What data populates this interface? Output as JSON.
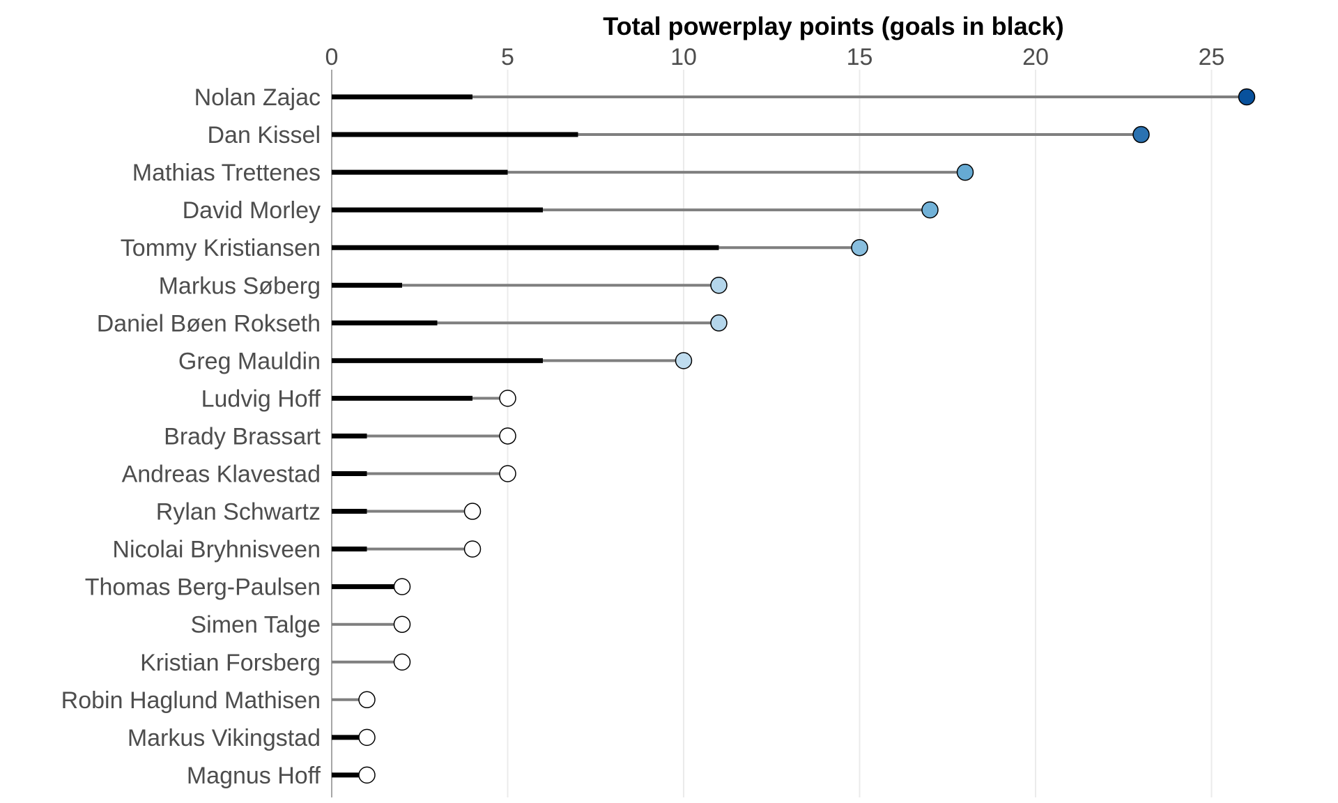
{
  "chart_data": {
    "type": "lollipop",
    "title": "Total powerplay points (goals in black)",
    "x_axis": {
      "position": "top",
      "ticks": [
        0,
        5,
        10,
        15,
        20,
        25
      ],
      "range": [
        0,
        28
      ]
    },
    "grid": "vertical",
    "players": [
      {
        "name": "Nolan Zajac",
        "points": 26,
        "goals": 4
      },
      {
        "name": "Dan Kissel",
        "points": 23,
        "goals": 7
      },
      {
        "name": "Mathias Trettenes",
        "points": 18,
        "goals": 5
      },
      {
        "name": "David Morley",
        "points": 17,
        "goals": 6
      },
      {
        "name": "Tommy Kristiansen",
        "points": 15,
        "goals": 11
      },
      {
        "name": "Markus Søberg",
        "points": 11,
        "goals": 2
      },
      {
        "name": "Daniel Bøen Rokseth",
        "points": 11,
        "goals": 3
      },
      {
        "name": "Greg Mauldin",
        "points": 10,
        "goals": 6
      },
      {
        "name": "Ludvig Hoff",
        "points": 5,
        "goals": 4
      },
      {
        "name": "Brady Brassart",
        "points": 5,
        "goals": 1
      },
      {
        "name": "Andreas Klavestad",
        "points": 5,
        "goals": 1
      },
      {
        "name": "Rylan Schwartz",
        "points": 4,
        "goals": 1
      },
      {
        "name": "Nicolai Bryhnisveen",
        "points": 4,
        "goals": 1
      },
      {
        "name": "Thomas Berg-Paulsen",
        "points": 2,
        "goals": 2
      },
      {
        "name": "Simen Talge",
        "points": 2,
        "goals": 0
      },
      {
        "name": "Kristian Forsberg",
        "points": 2,
        "goals": 0
      },
      {
        "name": "Robin Haglund Mathisen",
        "points": 1,
        "goals": 0
      },
      {
        "name": "Markus Vikingstad",
        "points": 1,
        "goals": 1
      },
      {
        "name": "Magnus Hoff",
        "points": 1,
        "goals": 1
      }
    ],
    "colors": {
      "points_line": "#7f7f7f",
      "goals_line": "#000000",
      "point_outline": "#000000",
      "fill_scale_low": "#f7fbff",
      "fill_scale_high": "#08519c"
    }
  }
}
